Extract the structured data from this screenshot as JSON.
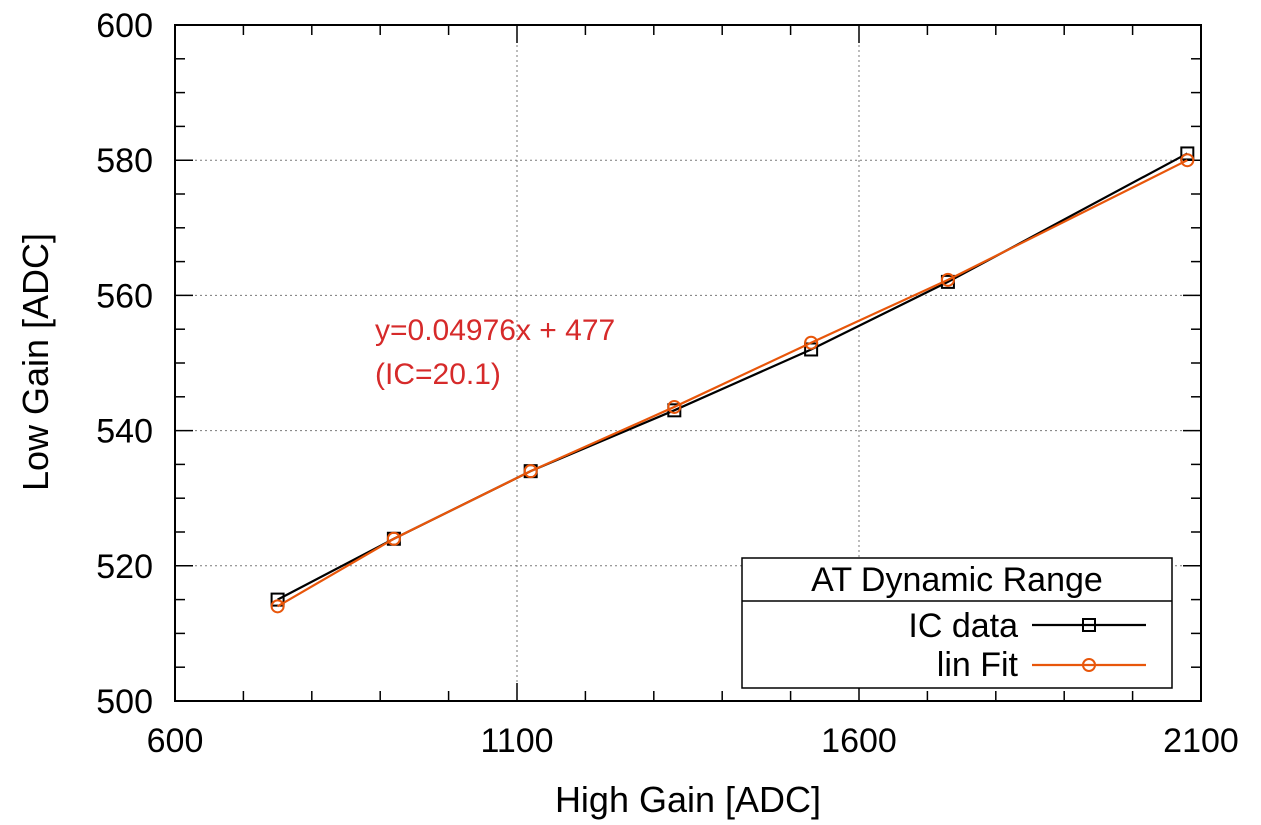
{
  "chart_data": {
    "type": "line",
    "xlabel": "High Gain [ADC]",
    "ylabel": "Low Gain [ADC]",
    "xlim": [
      600,
      2100
    ],
    "ylim": [
      500,
      600
    ],
    "xticks": [
      600,
      1100,
      1600,
      2100
    ],
    "yticks": [
      500,
      520,
      540,
      560,
      580,
      600
    ],
    "x_minor_step": 100,
    "y_minor_step": 5,
    "grid": true,
    "legend_title": "AT Dynamic Range",
    "legend_position": "bottom-right",
    "annotation": [
      "y=0.04976x + 477",
      "(IC=20.1)"
    ],
    "series": [
      {
        "name": "IC data",
        "color": "#000000",
        "marker": "square",
        "points": [
          [
            750,
            515
          ],
          [
            920,
            524
          ],
          [
            1120,
            534
          ],
          [
            1330,
            543
          ],
          [
            1530,
            552
          ],
          [
            1730,
            562
          ],
          [
            2080,
            581
          ]
        ]
      },
      {
        "name": "lin Fit",
        "color": "#e8560a",
        "marker": "circle",
        "points": [
          [
            750,
            514
          ],
          [
            920,
            524
          ],
          [
            1120,
            534
          ],
          [
            1330,
            543.5
          ],
          [
            1530,
            553
          ],
          [
            1730,
            562.3
          ],
          [
            2080,
            580
          ]
        ]
      }
    ]
  },
  "colors": {
    "annotation": "#d62a2a",
    "grid": "#7a7a7a"
  }
}
